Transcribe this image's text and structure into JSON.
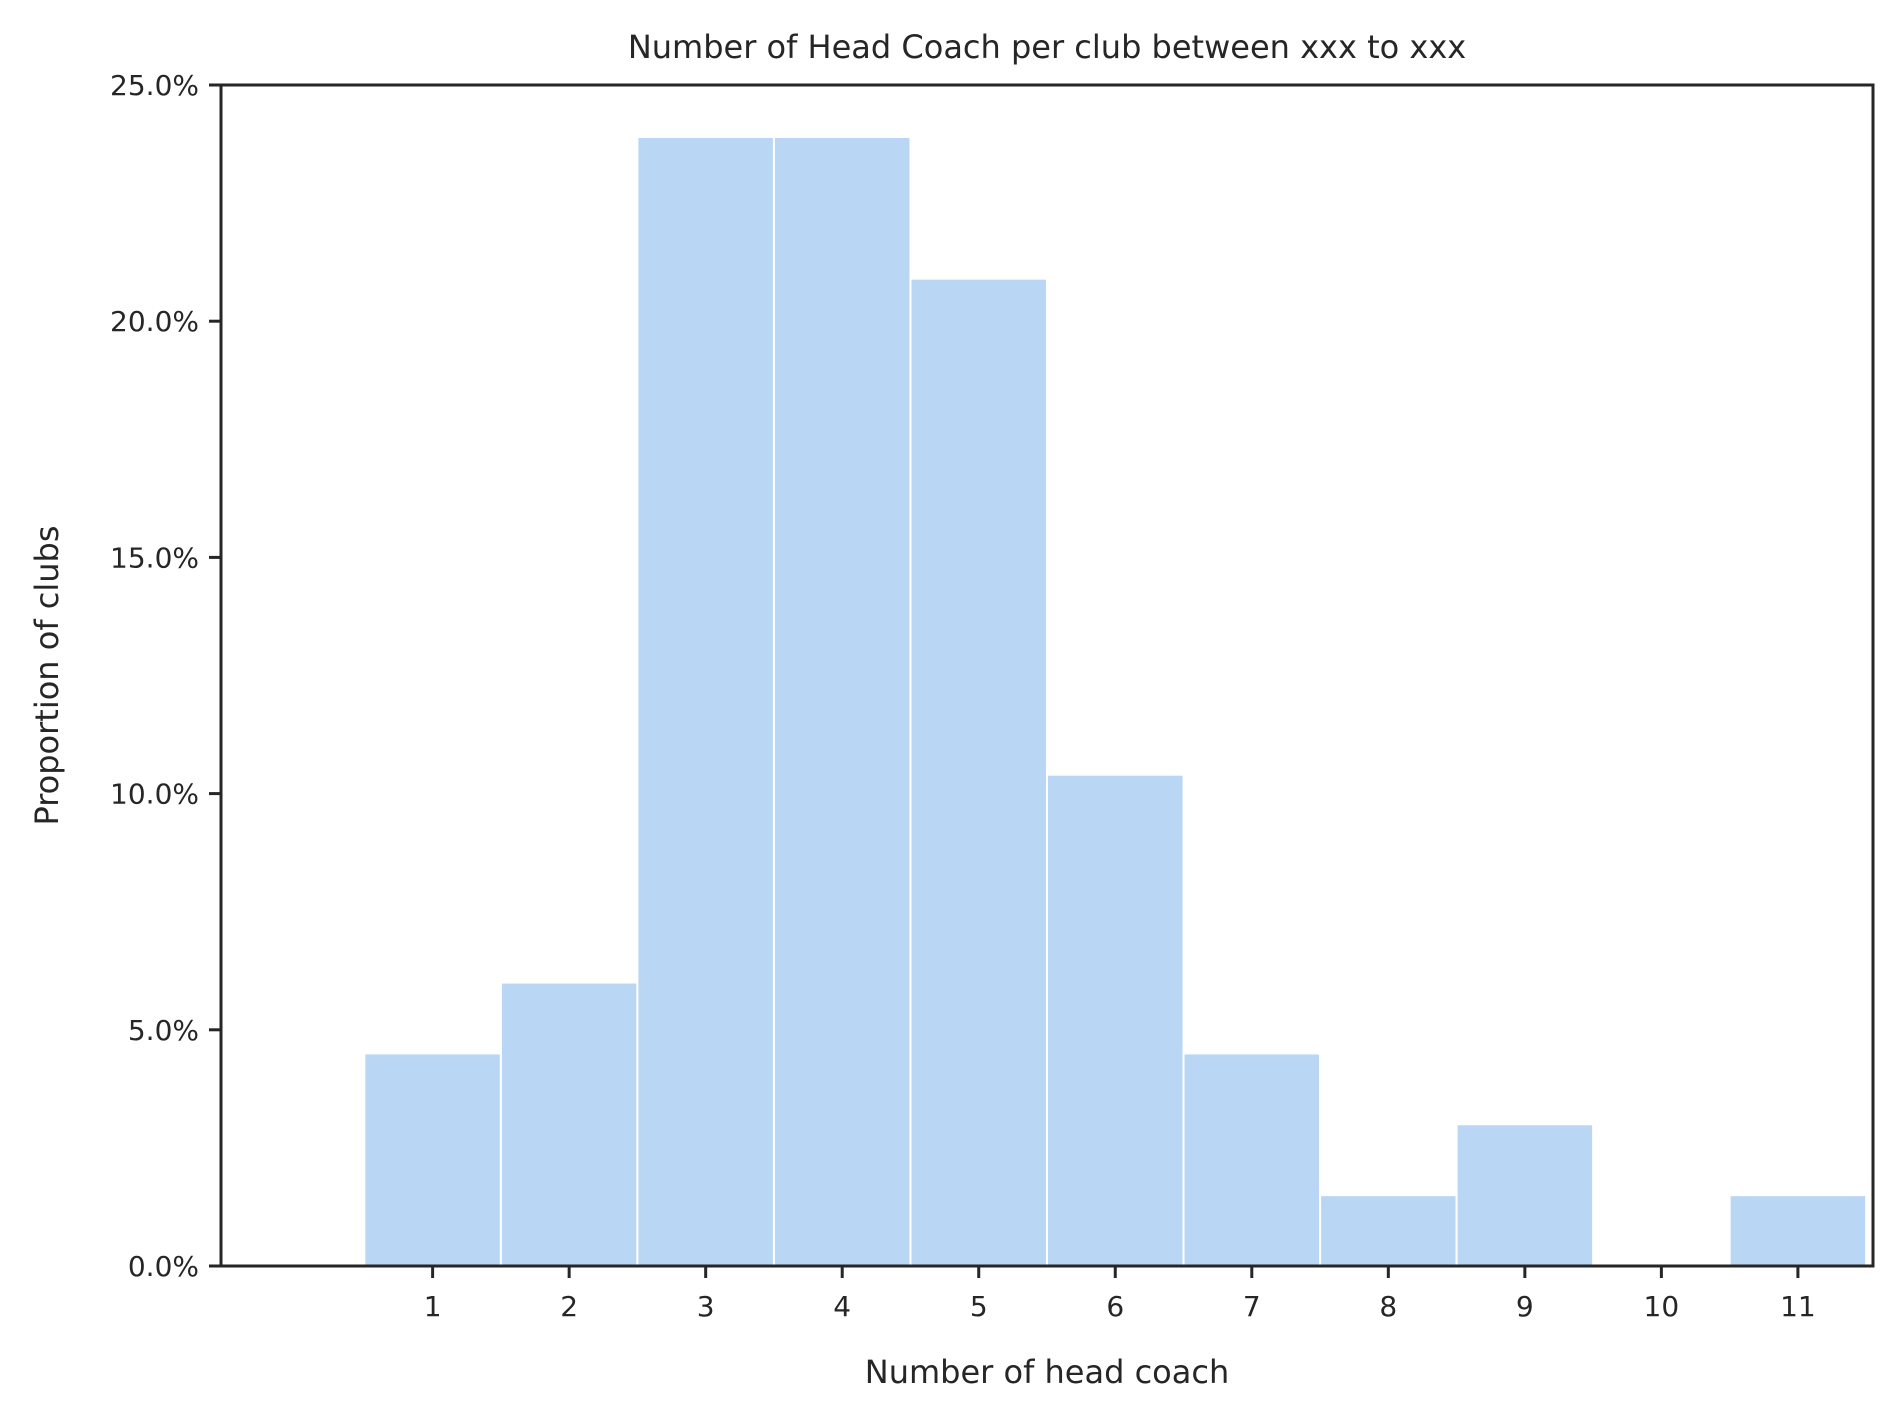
{
  "chart_data": {
    "type": "bar",
    "title": "Number of Head Coach per club between xxx to xxx",
    "xlabel": "Number of head coach",
    "ylabel": "Proportion of clubs",
    "categories": [
      "1",
      "2",
      "3",
      "4",
      "5",
      "6",
      "7",
      "8",
      "9",
      "10",
      "11"
    ],
    "values": [
      4.5,
      6.0,
      23.9,
      23.9,
      20.9,
      10.4,
      4.5,
      1.5,
      3.0,
      0.0,
      1.5
    ],
    "value_unit": "percent",
    "ylim": [
      0,
      25
    ],
    "yticks": [
      0,
      5,
      10,
      15,
      20,
      25
    ],
    "ytick_labels": [
      "0.0%",
      "5.0%",
      "10.0%",
      "15.0%",
      "20.0%",
      "25.0%"
    ],
    "xlim": [
      -0.55,
      11.55
    ],
    "grid": false,
    "legend": "none",
    "bar_color": "#b9d7f4",
    "bar_edge_color": "#ffffff",
    "axis_color": "#262626"
  }
}
